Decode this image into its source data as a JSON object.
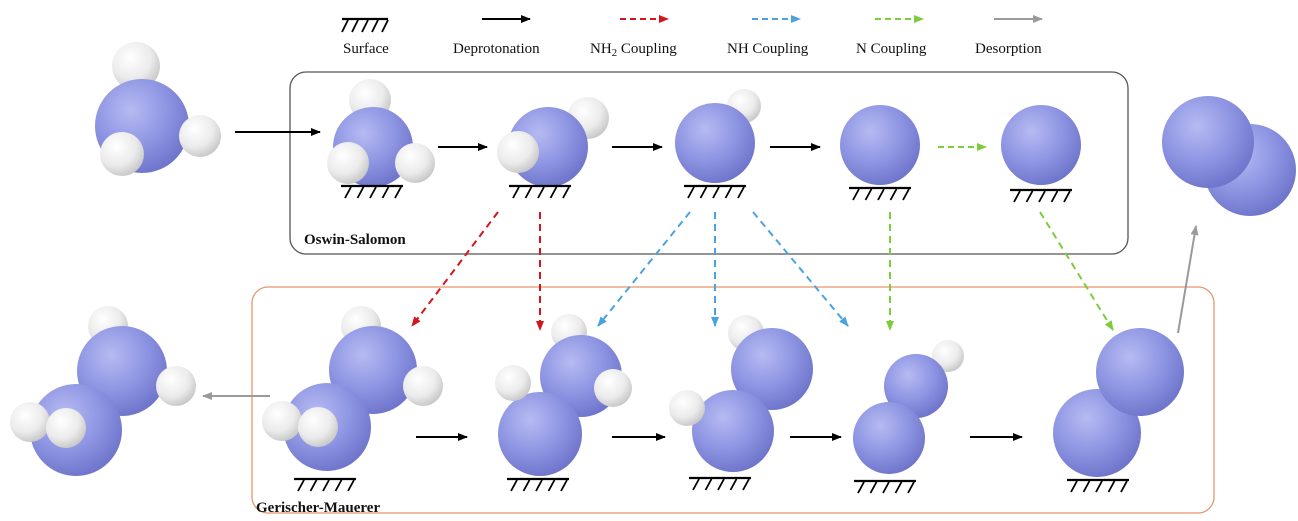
{
  "legend": {
    "surface": "Surface",
    "deprotonation": "Deprotonation",
    "nh2_coupling": "Coupling",
    "nh2_coupling_prefix": "NH",
    "nh2_coupling_subscript": "2",
    "nh_coupling": "NH Coupling",
    "n_coupling": "N Coupling",
    "desorption": "Desorption"
  },
  "mechanisms": {
    "top_box_label": "Oswin-Salomon",
    "bottom_box_label": "Gerischer-Mauerer"
  },
  "colors": {
    "nitrogen": "#8a91e0",
    "hydrogen": "#eeeeee",
    "deprotonation_arrow": "#000000",
    "nh2_coupling_arrow": "#d4151b",
    "nh_coupling_arrow": "#4aa3df",
    "n_coupling_arrow": "#7ccd3c",
    "desorption_arrow": "#9a9a9a",
    "top_box_border": "#555555",
    "bottom_box_border": "#e8956a"
  }
}
